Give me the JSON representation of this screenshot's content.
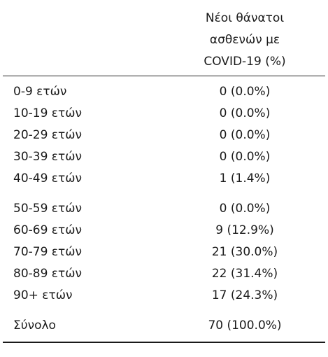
{
  "table": {
    "header": {
      "label_column": "",
      "value_column_lines": [
        "Νέοι θάνατοι",
        "ασθενών με",
        "COVID-19 (%)"
      ]
    },
    "rows": [
      {
        "label": "0-9 ετών",
        "value": "0 (0.0%)"
      },
      {
        "label": "10-19 ετών",
        "value": "0 (0.0%)"
      },
      {
        "label": "20-29 ετών",
        "value": "0 (0.0%)"
      },
      {
        "label": "30-39 ετών",
        "value": "0 (0.0%)"
      },
      {
        "label": "40-49 ετών",
        "value": "1 (1.4%)"
      },
      {
        "label": "50-59 ετών",
        "value": "0 (0.0%)"
      },
      {
        "label": "60-69 ετών",
        "value": "9 (12.9%)"
      },
      {
        "label": "70-79 ετών",
        "value": "21 (30.0%)"
      },
      {
        "label": "80-89 ετών",
        "value": "22 (31.4%)"
      },
      {
        "label": "90+ ετών",
        "value": "17 (24.3%)"
      }
    ],
    "total": {
      "label": "Σύνολο",
      "value": "70 (100.0%)"
    }
  }
}
